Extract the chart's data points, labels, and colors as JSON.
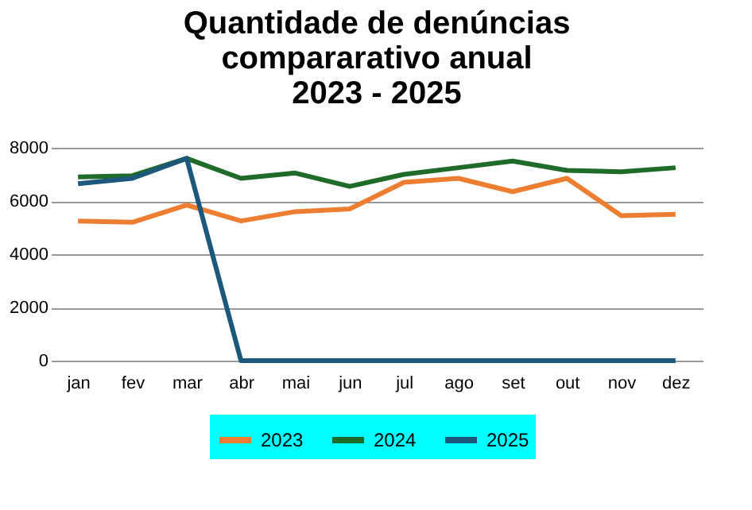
{
  "chart_data": {
    "type": "line",
    "title": [
      "Quantidade de denúncias",
      "compararativo anual",
      "2023 - 2025"
    ],
    "categories": [
      "jan",
      "fev",
      "mar",
      "abr",
      "mai",
      "jun",
      "jul",
      "ago",
      "set",
      "out",
      "nov",
      "dez"
    ],
    "series": [
      {
        "name": "2023",
        "color": "#ed7d31",
        "values": [
          5250,
          5200,
          5850,
          5250,
          5600,
          5700,
          6700,
          6850,
          6350,
          6850,
          5450,
          5500
        ]
      },
      {
        "name": "2024",
        "color": "#1e6b2a",
        "values": [
          6900,
          6950,
          7600,
          6850,
          7050,
          6550,
          7000,
          7250,
          7500,
          7150,
          7100,
          7250
        ]
      },
      {
        "name": "2025",
        "color": "#1b587c",
        "values": [
          6650,
          6850,
          7600,
          0,
          0,
          0,
          0,
          0,
          0,
          0,
          0,
          0
        ]
      }
    ],
    "ylim": [
      0,
      8000
    ],
    "yticks": [
      0,
      2000,
      4000,
      6000,
      8000
    ],
    "grid": "y",
    "legend": "bottom",
    "marker": "none",
    "line_style": "solid"
  }
}
